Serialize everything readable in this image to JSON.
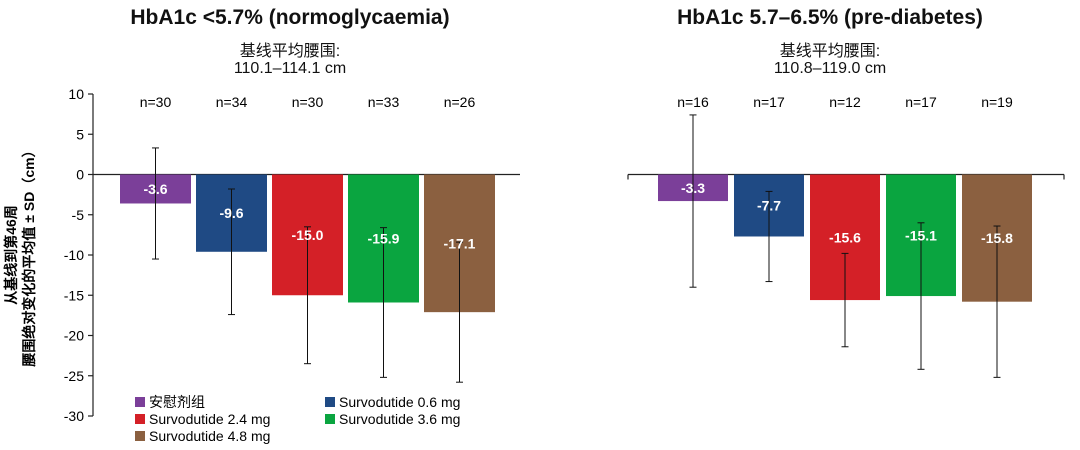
{
  "chart_data": [
    {
      "type": "bar",
      "title": "HbA1c <5.7% (normoglycaemia)",
      "subtitle": [
        "基线平均腰围:",
        "110.1–114.1 cm"
      ],
      "ylabel": [
        "从基线到第46周",
        "腰围绝对变化的平均值 ± SD（cm）"
      ],
      "ylim": [
        -30,
        10
      ],
      "yticks": [
        10,
        5,
        0,
        -5,
        -10,
        -15,
        -20,
        -25,
        -30
      ],
      "categories": [
        "安慰剂组",
        "Survodutide 0.6 mg",
        "Survodutide 2.4 mg",
        "Survodutide 3.6 mg",
        "Survodutide 4.8 mg"
      ],
      "values": [
        -3.6,
        -9.6,
        -15.0,
        -15.9,
        -17.1
      ],
      "value_labels": [
        "-3.6",
        "-9.6",
        "-15.0",
        "-15.9",
        "-17.1"
      ],
      "error_sd": [
        6.9,
        7.8,
        8.5,
        9.3,
        8.7
      ],
      "n_labels": [
        "n=30",
        "n=34",
        "n=30",
        "n=33",
        "n=26"
      ],
      "colors": [
        "#7b3f99",
        "#1f4a84",
        "#d42027",
        "#0aa540",
        "#8b6040"
      ]
    },
    {
      "type": "bar",
      "title": "HbA1c 5.7–6.5% (pre-diabetes)",
      "subtitle": [
        "基线平均腰围:",
        "110.8–119.0 cm"
      ],
      "ylim": [
        -30,
        10
      ],
      "categories": [
        "安慰剂组",
        "Survodutide 0.6 mg",
        "Survodutide 2.4 mg",
        "Survodutide 3.6 mg",
        "Survodutide 4.8 mg"
      ],
      "values": [
        -3.3,
        -7.7,
        -15.6,
        -15.1,
        -15.8
      ],
      "value_labels": [
        "-3.3",
        "-7.7",
        "-15.6",
        "-15.1",
        "-15.8"
      ],
      "error_sd": [
        10.7,
        5.6,
        5.8,
        9.1,
        9.4
      ],
      "n_labels": [
        "n=16",
        "n=17",
        "n=12",
        "n=17",
        "n=19"
      ],
      "colors": [
        "#7b3f99",
        "#1f4a84",
        "#d42027",
        "#0aa540",
        "#8b6040"
      ]
    }
  ],
  "legend": {
    "placement": "bottom-left",
    "items": [
      {
        "label": "安慰剂组",
        "color": "#7b3f99"
      },
      {
        "label": "Survodutide 0.6 mg",
        "color": "#1f4a84"
      },
      {
        "label": "Survodutide 2.4 mg",
        "color": "#d42027"
      },
      {
        "label": "Survodutide 3.6 mg",
        "color": "#0aa540"
      },
      {
        "label": "Survodutide 4.8 mg",
        "color": "#8b6040"
      }
    ]
  }
}
